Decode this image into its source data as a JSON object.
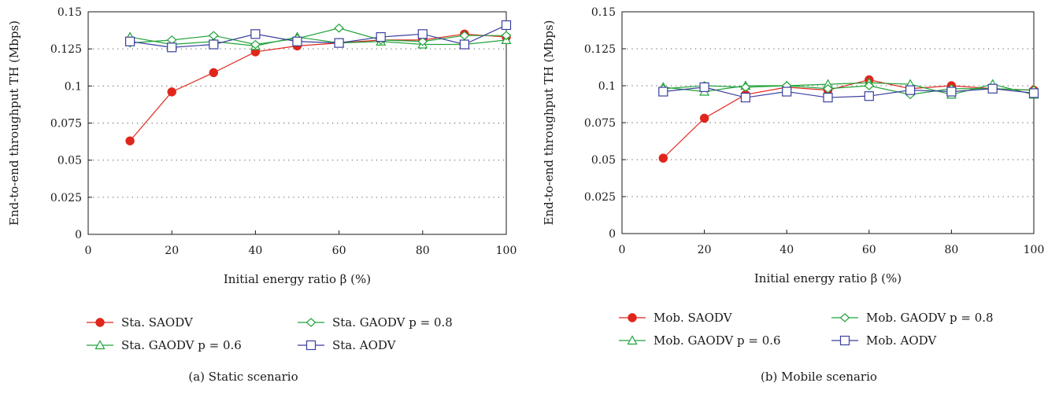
{
  "chart_data": [
    {
      "type": "line",
      "caption": "(a) Static scenario",
      "xlabel": "Initial energy ratio β (%)",
      "ylabel": "End-to-end throughput TH (Mbps)",
      "xlim": [
        0,
        100
      ],
      "ylim": [
        0,
        0.15
      ],
      "x_ticks": [
        "0",
        "20",
        "40",
        "60",
        "80",
        "100"
      ],
      "y_ticks": [
        "0",
        "0.025",
        "0.05",
        "0.075",
        "0.1",
        "0.125",
        "0.15"
      ],
      "grid": "horizontal dotted",
      "legend_position": "bottom",
      "x": [
        10,
        20,
        30,
        40,
        50,
        60,
        70,
        80,
        90,
        100
      ],
      "series": [
        {
          "name": "Sta. SAODV",
          "color": "#e0261c",
          "marker": "filled-circle",
          "values": [
            0.063,
            0.096,
            0.109,
            0.123,
            0.127,
            0.129,
            0.131,
            0.131,
            0.135,
            0.133
          ]
        },
        {
          "name": "Sta. GAODV p = 0.6",
          "color": "#22a33a",
          "marker": "triangle",
          "values": [
            0.133,
            0.128,
            0.13,
            0.127,
            0.133,
            0.129,
            0.13,
            0.128,
            0.128,
            0.131
          ]
        },
        {
          "name": "Sta. GAODV p = 0.8",
          "color": "#22a33a",
          "marker": "diamond",
          "values": [
            0.129,
            0.131,
            0.134,
            0.128,
            0.132,
            0.139,
            0.131,
            0.13,
            0.134,
            0.134
          ]
        },
        {
          "name": "Sta. AODV",
          "color": "#3a3f9e",
          "marker": "square",
          "values": [
            0.13,
            0.126,
            0.128,
            0.135,
            0.13,
            0.129,
            0.133,
            0.135,
            0.128,
            0.141
          ]
        }
      ]
    },
    {
      "type": "line",
      "caption": "(b) Mobile scenario",
      "xlabel": "Initial energy ratio β (%)",
      "ylabel": "End-to-end throughput TH (Mbps)",
      "xlim": [
        0,
        100
      ],
      "ylim": [
        0,
        0.15
      ],
      "x_ticks": [
        "0",
        "20",
        "40",
        "60",
        "80",
        "100"
      ],
      "y_ticks": [
        "0",
        "0.025",
        "0.05",
        "0.075",
        "0.1",
        "0.125",
        "0.15"
      ],
      "grid": "horizontal dotted",
      "legend_position": "bottom",
      "x": [
        10,
        20,
        30,
        40,
        50,
        60,
        70,
        80,
        90,
        100
      ],
      "series": [
        {
          "name": "Mob. SAODV",
          "color": "#e0261c",
          "marker": "filled-circle",
          "values": [
            0.051,
            0.078,
            0.094,
            0.099,
            0.097,
            0.104,
            0.098,
            0.1,
            0.098,
            0.097
          ]
        },
        {
          "name": "Mob. GAODV p = 0.6",
          "color": "#22a33a",
          "marker": "triangle",
          "values": [
            0.099,
            0.096,
            0.1,
            0.1,
            0.101,
            0.102,
            0.101,
            0.094,
            0.101,
            0.094
          ]
        },
        {
          "name": "Mob. GAODV p = 0.8",
          "color": "#22a33a",
          "marker": "diamond",
          "values": [
            0.098,
            0.1,
            0.099,
            0.1,
            0.098,
            0.1,
            0.094,
            0.098,
            0.098,
            0.097
          ]
        },
        {
          "name": "Mob. AODV",
          "color": "#3a3f9e",
          "marker": "square",
          "values": [
            0.096,
            0.099,
            0.092,
            0.096,
            0.092,
            0.093,
            0.097,
            0.096,
            0.098,
            0.095
          ]
        }
      ]
    }
  ]
}
